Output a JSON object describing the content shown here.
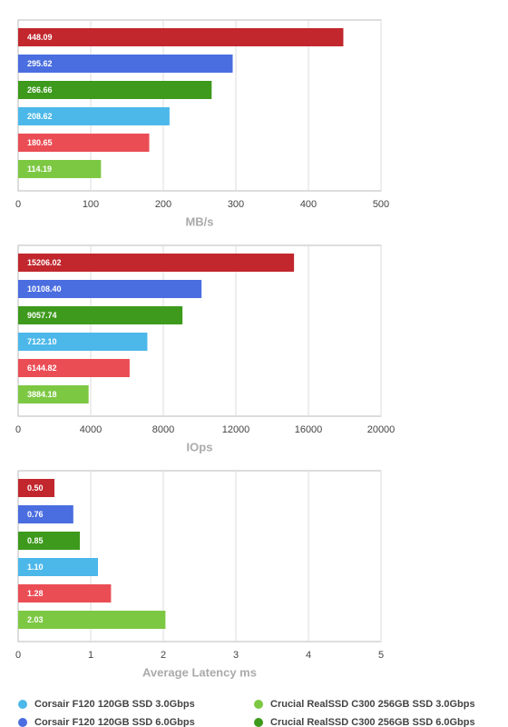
{
  "chart_data": [
    {
      "type": "bar",
      "orientation": "horizontal",
      "x_label": "MB/s",
      "values": [
        448.09,
        295.62,
        266.66,
        208.62,
        180.65,
        114.19
      ],
      "value_labels": [
        "448.09",
        "295.62",
        "266.66",
        "208.62",
        "180.65",
        "114.19"
      ],
      "colors": [
        "#c1272d",
        "#4a6de0",
        "#3d9a1c",
        "#4cb8e9",
        "#eb4d55",
        "#7dc843"
      ],
      "xlim": [
        0,
        500
      ],
      "xticks": [
        0,
        100,
        200,
        300,
        400,
        500
      ],
      "grid": true
    },
    {
      "type": "bar",
      "orientation": "horizontal",
      "x_label": "IOps",
      "values": [
        15206.02,
        10108.4,
        9057.74,
        7122.1,
        6144.82,
        3884.18
      ],
      "value_labels": [
        "15206.02",
        "10108.40",
        "9057.74",
        "7122.10",
        "6144.82",
        "3884.18"
      ],
      "colors": [
        "#c1272d",
        "#4a6de0",
        "#3d9a1c",
        "#4cb8e9",
        "#eb4d55",
        "#7dc843"
      ],
      "xlim": [
        0,
        20000
      ],
      "xticks": [
        0,
        4000,
        8000,
        12000,
        16000,
        20000
      ],
      "grid": true
    },
    {
      "type": "bar",
      "orientation": "horizontal",
      "x_label": "Average Latency ms",
      "values": [
        0.5,
        0.76,
        0.85,
        1.1,
        1.28,
        2.03
      ],
      "value_labels": [
        "0.50",
        "0.76",
        "0.85",
        "1.10",
        "1.28",
        "2.03"
      ],
      "colors": [
        "#c1272d",
        "#4a6de0",
        "#3d9a1c",
        "#4cb8e9",
        "#eb4d55",
        "#7dc843"
      ],
      "xlim": [
        0,
        5
      ],
      "xticks": [
        0,
        1,
        2,
        3,
        4,
        5
      ],
      "grid": true
    }
  ],
  "legend": [
    {
      "name": "Corsair F120 120GB SSD 3.0Gbps",
      "color": "#4cb8e9"
    },
    {
      "name": "Crucial RealSSD C300 256GB SSD 3.0Gbps",
      "color": "#7dc843"
    },
    {
      "name": "Corsair F120 120GB SSD 6.0Gbps",
      "color": "#4a6de0"
    },
    {
      "name": "Crucial RealSSD C300 256GB SSD 6.0Gbps",
      "color": "#3d9a1c"
    }
  ]
}
